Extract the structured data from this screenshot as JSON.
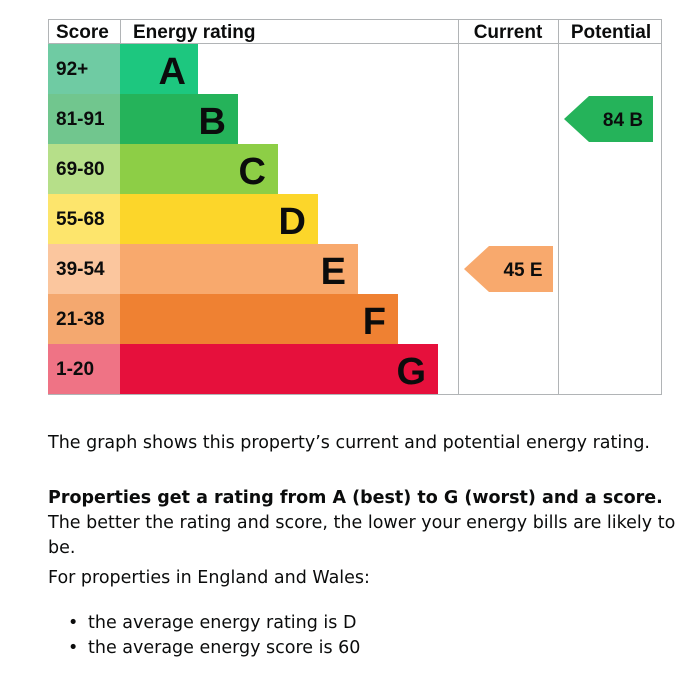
{
  "chart_data": {
    "type": "table",
    "headers": {
      "score": "Score",
      "rating": "Energy rating",
      "current": "Current",
      "potential": "Potential"
    },
    "bands": [
      {
        "letter": "A",
        "range": "92+",
        "color": "#1dc77f",
        "score_color": "#6fcba3"
      },
      {
        "letter": "B",
        "range": "81-91",
        "color": "#25b35a",
        "score_color": "#71c68e"
      },
      {
        "letter": "C",
        "range": "69-80",
        "color": "#8dce46",
        "score_color": "#b6df89"
      },
      {
        "letter": "D",
        "range": "55-68",
        "color": "#fcd62a",
        "score_color": "#fde56c"
      },
      {
        "letter": "E",
        "range": "39-54",
        "color": "#f8a96d",
        "score_color": "#fbc69e"
      },
      {
        "letter": "F",
        "range": "21-38",
        "color": "#ef8132",
        "score_color": "#f4a86f"
      },
      {
        "letter": "G",
        "range": "1-20",
        "color": "#e6103c",
        "score_color": "#ef7385"
      }
    ],
    "current": {
      "score": 45,
      "band": "E",
      "label": "45 E",
      "color": "#f8a96d"
    },
    "potential": {
      "score": 84,
      "band": "B",
      "label": "84 B",
      "color": "#25b35a"
    }
  },
  "description": {
    "graph_text": "The graph shows this property’s current and potential energy rating.",
    "rating_bold": "Properties get a rating from A (best) to G (worst) and a score.",
    "rating_rest": " The better the rating and score, the lower your energy bills are likely to be.",
    "region_text": "For properties in England and Wales:",
    "bullets": [
      "the average energy rating is D",
      "the average energy score is 60"
    ]
  }
}
